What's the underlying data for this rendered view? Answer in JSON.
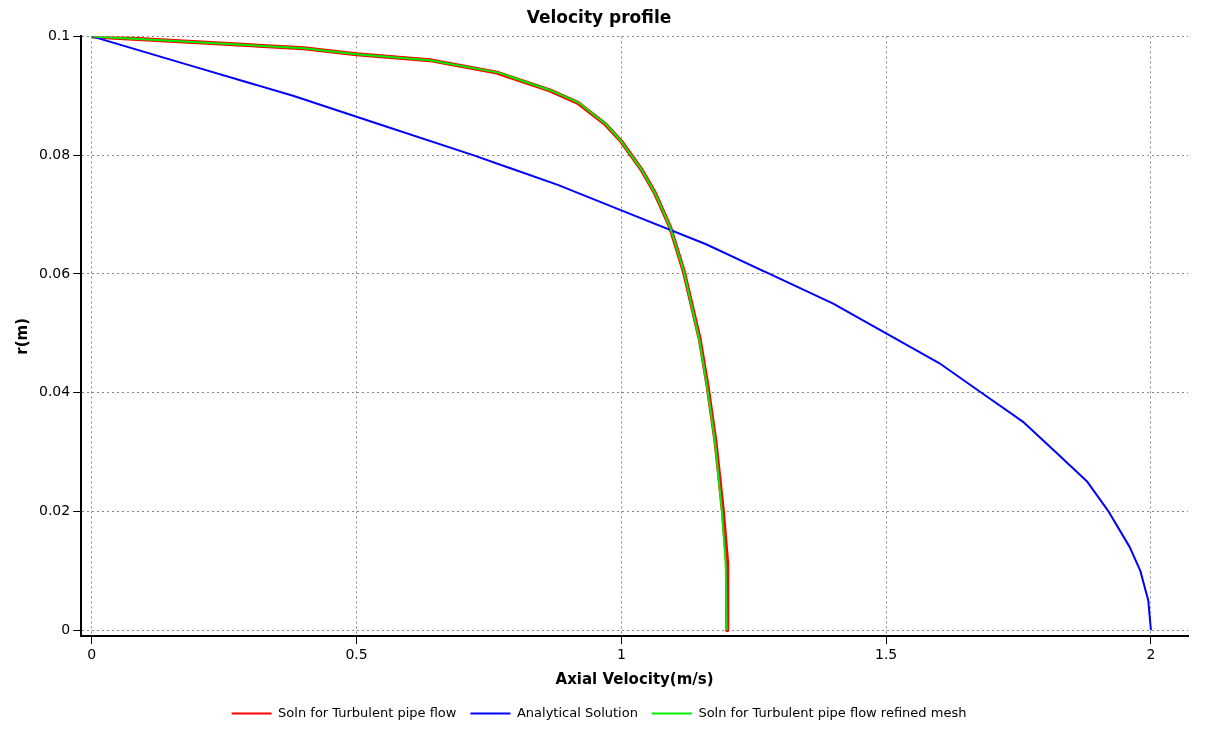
{
  "chart_data": {
    "type": "line",
    "title": "Velocity profile",
    "xlabel": "Axial Velocity(m/s)",
    "ylabel": "r(m)",
    "xlim": [
      -0.02,
      2.07
    ],
    "ylim": [
      -0.001,
      0.1
    ],
    "xticks": [
      0,
      0.5,
      1,
      1.5,
      2
    ],
    "yticks": [
      0,
      0.02,
      0.04,
      0.06,
      0.08,
      0.1
    ],
    "grid": true,
    "legend": "bottom",
    "marker": "none",
    "line_style": "solid",
    "series": [
      {
        "name": "Soln for Turbulent pipe flow",
        "color": "#ff0000",
        "x": [
          0,
          0.2,
          0.4,
          0.5,
          0.638,
          0.765,
          0.865,
          0.918,
          0.97,
          1.0,
          1.037,
          1.063,
          1.092,
          1.118,
          1.148,
          1.163,
          1.178,
          1.192,
          1.2,
          1.2
        ],
        "values": [
          0.1,
          0.099,
          0.098,
          0.097,
          0.096,
          0.0939,
          0.0909,
          0.0888,
          0.0852,
          0.0823,
          0.0777,
          0.0737,
          0.0679,
          0.0604,
          0.049,
          0.041,
          0.0316,
          0.0199,
          0.0112,
          0
        ]
      },
      {
        "name": "Analytical Solution",
        "color": "#0000ff",
        "x": [
          0,
          0.19,
          0.38,
          0.55,
          0.72,
          0.88,
          1.02,
          1.16,
          1.28,
          1.4,
          1.5,
          1.6,
          1.68,
          1.76,
          1.82,
          1.88,
          1.92,
          1.96,
          1.98,
          1.995,
          2
        ],
        "values": [
          0.1,
          0.095,
          0.09,
          0.085,
          0.08,
          0.075,
          0.07,
          0.065,
          0.06,
          0.055,
          0.05,
          0.045,
          0.04,
          0.035,
          0.03,
          0.025,
          0.02,
          0.014,
          0.01,
          0.005,
          0
        ]
      },
      {
        "name": "Soln for Turbulent pipe flow refined mesh",
        "color": "#00ee00",
        "x": [
          0,
          0.2,
          0.4,
          0.5,
          0.638,
          0.768,
          0.867,
          0.92,
          0.971,
          1.0,
          1.037,
          1.063,
          1.092,
          1.118,
          1.147,
          1.162,
          1.177,
          1.19,
          1.197,
          1.199
        ],
        "values": [
          0.1,
          0.099,
          0.098,
          0.097,
          0.096,
          0.0939,
          0.0909,
          0.0888,
          0.0852,
          0.0823,
          0.0777,
          0.0737,
          0.0679,
          0.0604,
          0.049,
          0.041,
          0.0316,
          0.0199,
          0.0112,
          0
        ]
      }
    ]
  }
}
